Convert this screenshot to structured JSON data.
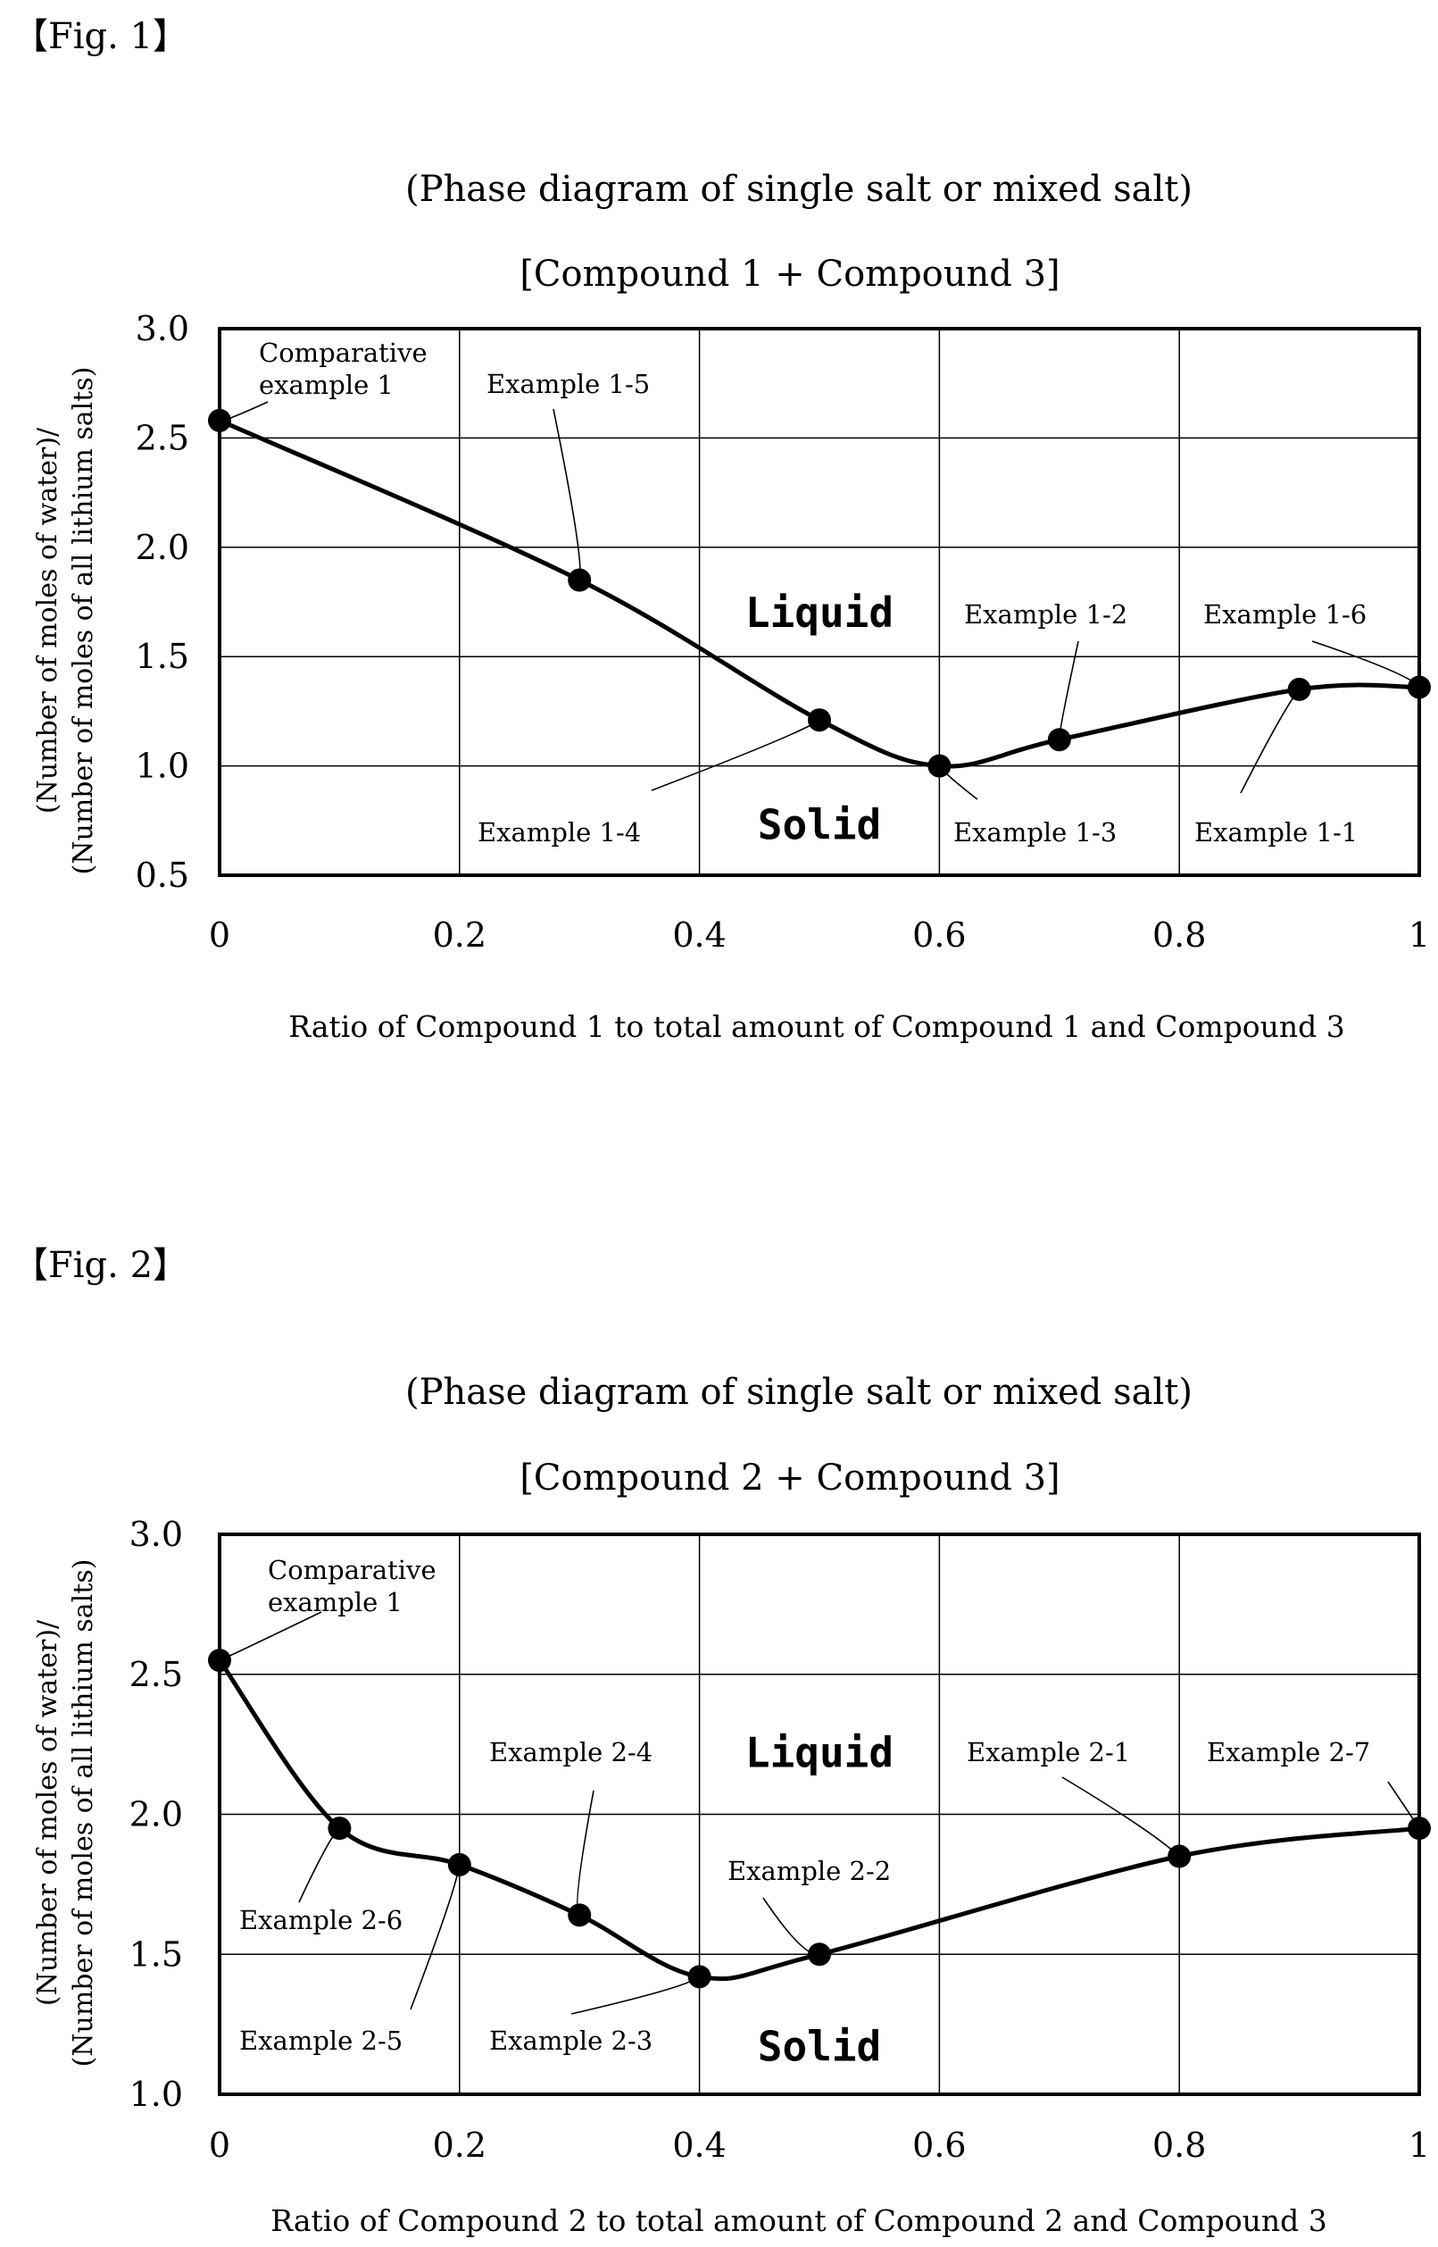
{
  "figures": [
    {
      "fig_label": "【Fig. 1】",
      "chart_data": {
        "type": "line",
        "title": "(Phase diagram of single salt or mixed salt)",
        "subtitle": "[Compound 1 + Compound 3]",
        "xlabel": "Ratio of Compound 1 to total amount of Compound 1 and Compound 3",
        "ylabel_line1": "(Number of moles of water)/",
        "ylabel_line2": "(Number of moles of all lithium salts)",
        "xlim": [
          0,
          1
        ],
        "ylim": [
          0.5,
          3.0
        ],
        "x_ticks": [
          0,
          0.2,
          0.4,
          0.6,
          0.8,
          1
        ],
        "x_tick_labels": [
          "0",
          "0.2",
          "0.4",
          "0.6",
          "0.8",
          "1"
        ],
        "y_ticks": [
          0.5,
          1.0,
          1.5,
          2.0,
          2.5,
          3.0
        ],
        "y_tick_labels": [
          "0.5",
          "1.0",
          "1.5",
          "2.0",
          "2.5",
          "3.0"
        ],
        "grid": true,
        "x": [
          0,
          0.3,
          0.5,
          0.6,
          0.7,
          0.9,
          1.0
        ],
        "y": [
          2.58,
          1.85,
          1.21,
          1.0,
          1.12,
          1.35,
          1.36
        ],
        "region_labels": [
          {
            "text": "Liquid",
            "x": 0.5,
            "y": 1.7
          },
          {
            "text": "Solid",
            "x": 0.5,
            "y": 0.73
          }
        ],
        "annotations": [
          {
            "lines": [
              "Comparative",
              "example 1"
            ],
            "point_x": 0,
            "point_y": 2.58
          },
          {
            "lines": [
              "Example 1-5"
            ],
            "point_x": 0.3,
            "point_y": 1.85
          },
          {
            "lines": [
              "Example 1-4"
            ],
            "point_x": 0.5,
            "point_y": 1.21
          },
          {
            "lines": [
              "Example 1-3"
            ],
            "point_x": 0.6,
            "point_y": 1.0
          },
          {
            "lines": [
              "Example 1-2"
            ],
            "point_x": 0.7,
            "point_y": 1.12
          },
          {
            "lines": [
              "Example 1-1"
            ],
            "point_x": 0.9,
            "point_y": 1.35
          },
          {
            "lines": [
              "Example 1-6"
            ],
            "point_x": 1.0,
            "point_y": 1.36
          }
        ]
      }
    },
    {
      "fig_label": "【Fig. 2】",
      "chart_data": {
        "type": "line",
        "title": "(Phase diagram of single salt or mixed salt)",
        "subtitle": "[Compound 2 + Compound 3]",
        "xlabel": "Ratio of Compound 2 to total amount of Compound 2 and Compound 3",
        "ylabel_line1": "(Number of moles of water)/",
        "ylabel_line2": "(Number of moles of all lithium salts)",
        "xlim": [
          0,
          1
        ],
        "ylim": [
          1.0,
          3.0
        ],
        "x_ticks": [
          0,
          0.2,
          0.4,
          0.6,
          0.8,
          1
        ],
        "x_tick_labels": [
          "0",
          "0.2",
          "0.4",
          "0.6",
          "0.8",
          "1"
        ],
        "y_ticks": [
          1.0,
          1.5,
          2.0,
          2.5,
          3.0
        ],
        "y_tick_labels": [
          "1.0",
          "1.5",
          "2.0",
          "2.5",
          "3.0"
        ],
        "grid": true,
        "x": [
          0,
          0.1,
          0.2,
          0.3,
          0.4,
          0.5,
          0.8,
          1.0
        ],
        "y": [
          2.55,
          1.95,
          1.82,
          1.64,
          1.42,
          1.5,
          1.85,
          1.95
        ],
        "region_labels": [
          {
            "text": "Liquid",
            "x": 0.5,
            "y": 2.22
          },
          {
            "text": "Solid",
            "x": 0.5,
            "y": 1.17
          }
        ],
        "annotations": [
          {
            "lines": [
              "Comparative",
              "example 1"
            ],
            "point_x": 0,
            "point_y": 2.55
          },
          {
            "lines": [
              "Example 2-6"
            ],
            "point_x": 0.1,
            "point_y": 1.95
          },
          {
            "lines": [
              "Example 2-5"
            ],
            "point_x": 0.2,
            "point_y": 1.82
          },
          {
            "lines": [
              "Example 2-4"
            ],
            "point_x": 0.3,
            "point_y": 1.64
          },
          {
            "lines": [
              "Example 2-3"
            ],
            "point_x": 0.4,
            "point_y": 1.42
          },
          {
            "lines": [
              "Example 2-2"
            ],
            "point_x": 0.5,
            "point_y": 1.5
          },
          {
            "lines": [
              "Example 2-1"
            ],
            "point_x": 0.8,
            "point_y": 1.85
          },
          {
            "lines": [
              "Example 2-7"
            ],
            "point_x": 1.0,
            "point_y": 1.95
          }
        ]
      }
    }
  ]
}
